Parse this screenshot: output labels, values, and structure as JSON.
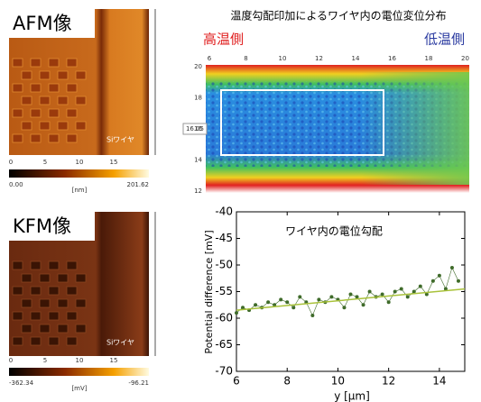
{
  "afm": {
    "label": "AFM像",
    "wire_label": "Siワイヤ",
    "xticks": [
      "0",
      "5",
      "10",
      "15"
    ],
    "colorbar": {
      "min": "0.00",
      "unit": "[nm]",
      "max": "201.62"
    }
  },
  "kfm": {
    "label": "KFM像",
    "wire_label": "Siワイヤ",
    "xticks": [
      "0",
      "5",
      "10",
      "15"
    ],
    "colorbar": {
      "min": "-362.34",
      "unit": "[mV]",
      "max": "-96.21"
    }
  },
  "map": {
    "title": "温度勾配印加によるワイヤ内の電位変位分布",
    "hot": "高温側",
    "cold": "低温側",
    "top_ticks": [
      "6",
      "8",
      "10",
      "12",
      "14",
      "16",
      "18",
      "20"
    ],
    "left_ticks": [
      "20",
      "18",
      "16",
      "14",
      "12"
    ],
    "marker": "16.05"
  },
  "chart_data": {
    "type": "scatter",
    "title": "ワイヤ内の電位勾配",
    "xlabel": "y [μm]",
    "ylabel": "Potential difference [mV]",
    "xlim": [
      6,
      15
    ],
    "ylim": [
      -70,
      -40
    ],
    "xticks": [
      6,
      8,
      10,
      12,
      14
    ],
    "yticks": [
      -40,
      -45,
      -50,
      -55,
      -60,
      -65,
      -70
    ],
    "series": [
      {
        "type": "scatter",
        "color": "#3f6b2a",
        "x": [
          6,
          6.25,
          6.5,
          6.75,
          7,
          7.25,
          7.5,
          7.75,
          8,
          8.25,
          8.5,
          8.75,
          9,
          9.25,
          9.5,
          9.75,
          10,
          10.25,
          10.5,
          10.75,
          11,
          11.25,
          11.5,
          11.75,
          12,
          12.25,
          12.5,
          12.75,
          13,
          13.25,
          13.5,
          13.75,
          14,
          14.25,
          14.5,
          14.75
        ],
        "values": [
          -59,
          -58,
          -58.5,
          -57.5,
          -58,
          -57,
          -57.5,
          -56.5,
          -57,
          -58,
          -56,
          -57,
          -59.5,
          -56.5,
          -57,
          -56,
          -56.5,
          -58,
          -55.5,
          -56,
          -57.5,
          -55,
          -56,
          -55.5,
          -57,
          -55,
          -54.5,
          -56,
          -55,
          -54,
          -55.5,
          -53,
          -52,
          -54.5,
          -50.5,
          -53
        ]
      },
      {
        "type": "line",
        "color": "#a9c23a",
        "x": [
          6,
          15
        ],
        "values": [
          -58.5,
          -54.5
        ]
      }
    ]
  }
}
